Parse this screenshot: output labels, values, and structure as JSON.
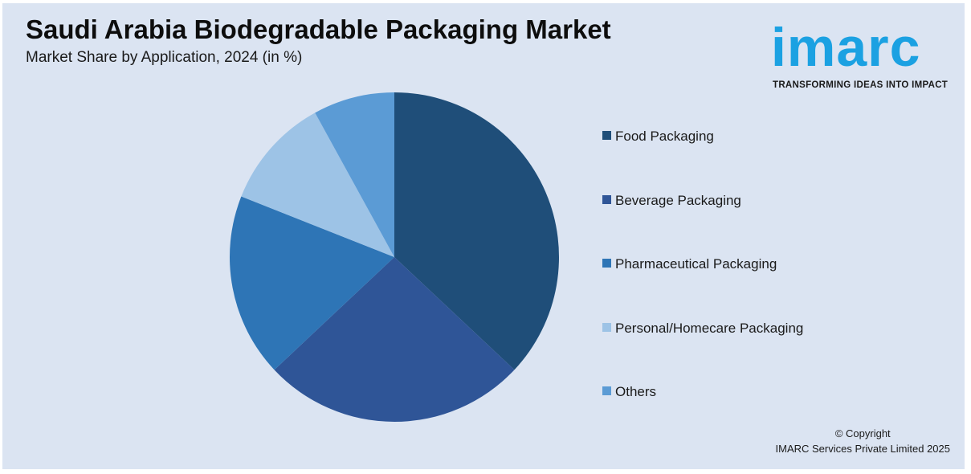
{
  "header": {
    "title": "Saudi Arabia Biodegradable Packaging Market",
    "subtitle": "Market Share by Application, 2024 (in %)"
  },
  "logo": {
    "word": "imarc",
    "tagline": "TRANSFORMING IDEAS INTO IMPACT",
    "color": "#1ba1e2"
  },
  "chart_data": {
    "type": "pie",
    "title": "Saudi Arabia Biodegradable Packaging Market",
    "subtitle": "Market Share by Application, 2024 (in %)",
    "legend_position": "right",
    "slices": [
      {
        "label": "Food Packaging",
        "value": 37,
        "color": "#1f4e79"
      },
      {
        "label": "Beverage Packaging",
        "value": 26,
        "color": "#2f5597"
      },
      {
        "label": "Pharmaceutical Packaging",
        "value": 18,
        "color": "#2e75b6"
      },
      {
        "label": "Personal/Homecare Packaging",
        "value": 11,
        "color": "#9dc3e6"
      },
      {
        "label": "Others",
        "value": 8,
        "color": "#5b9bd5"
      }
    ]
  },
  "footer": {
    "copyright_line1": "© Copyright",
    "copyright_line2": "IMARC Services Private Limited 2025"
  }
}
